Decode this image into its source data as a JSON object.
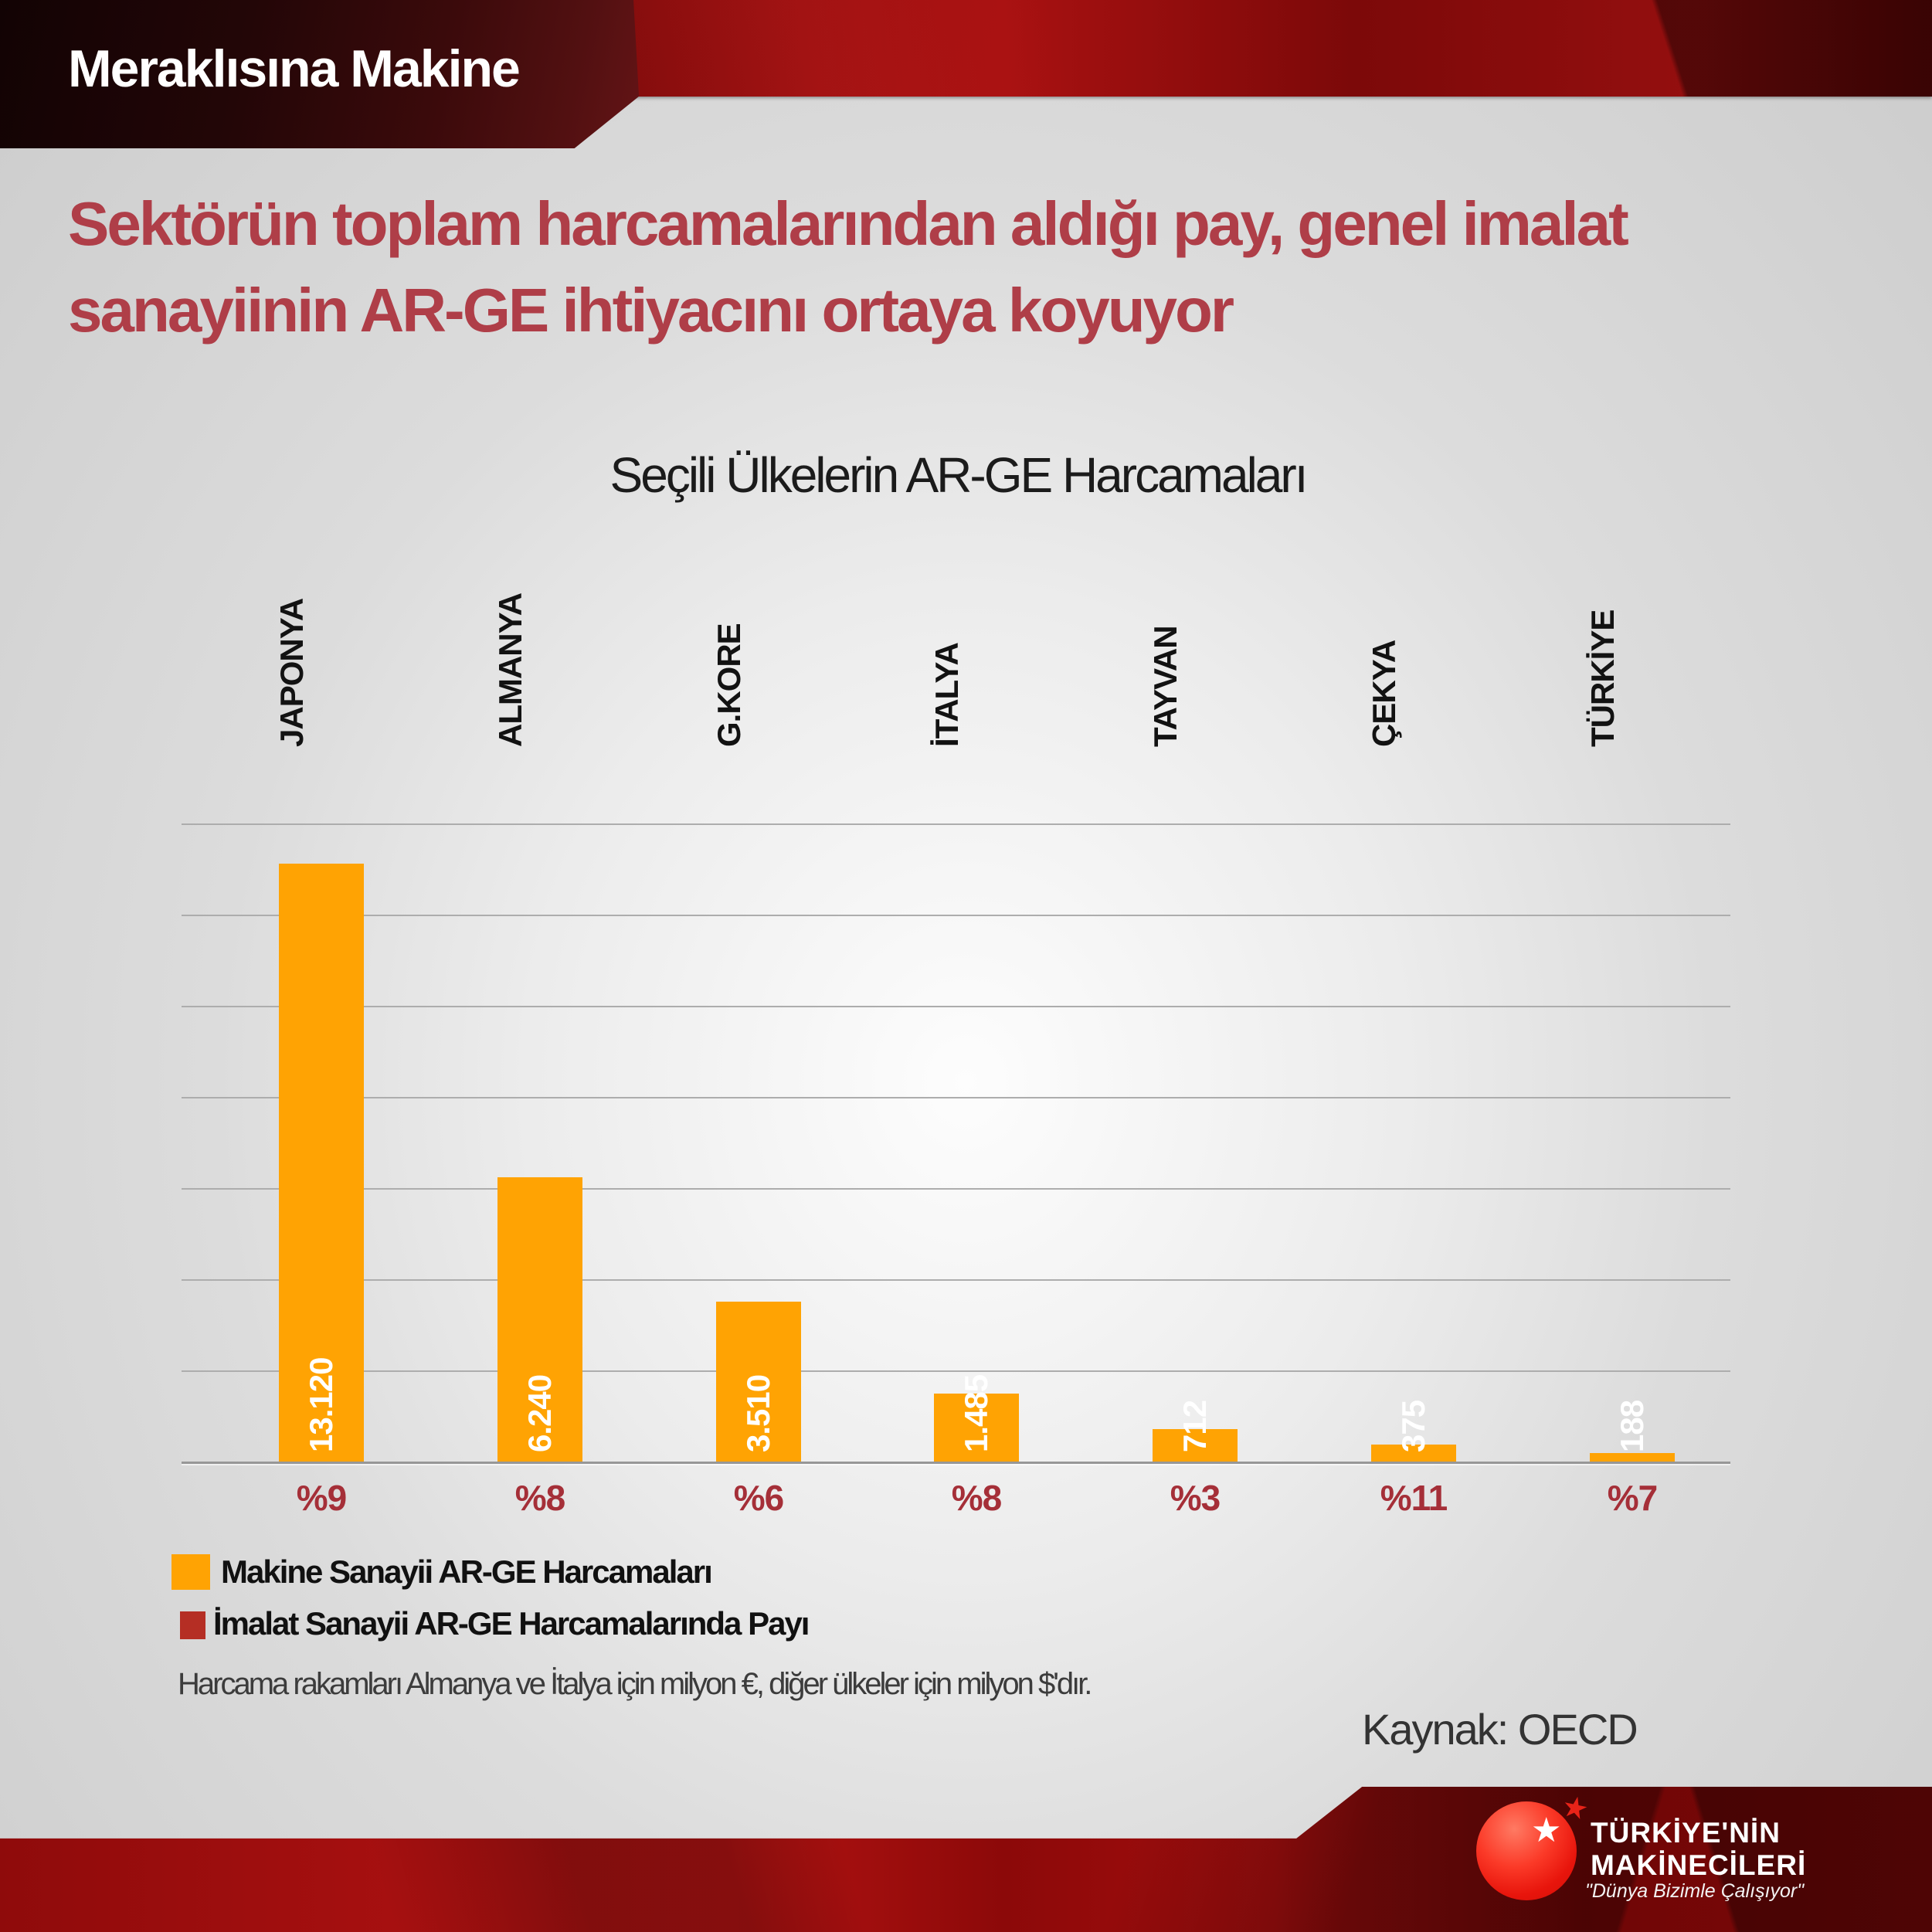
{
  "banner": {
    "title": "Meraklısına Makine"
  },
  "headline": {
    "line1": "Sektörün toplam harcamalarından aldığı pay, genel imalat",
    "line2": "sanayiinin AR-GE ihtiyacını ortaya koyuyor"
  },
  "chart": {
    "chart_data": {
      "type": "bar",
      "title": "Seçili Ülkelerin AR-GE Harcamaları",
      "categories": [
        "JAPONYA",
        "ALMANYA",
        "G.KORE",
        "İTALYA",
        "TAYVAN",
        "ÇEKYA",
        "TÜRKİYE"
      ],
      "series": [
        {
          "name": "Makine Sanayii AR-GE Harcamaları",
          "values": [
            13120,
            6240,
            3510,
            1485,
            712,
            375,
            188
          ],
          "labels": [
            "13.120",
            "6.240",
            "3.510",
            "1.485",
            "712",
            "375",
            "188"
          ],
          "color": "#FFA303"
        },
        {
          "name": "İmalat Sanayii AR-GE Harcamalarında Payı",
          "values": [
            9,
            8,
            6,
            8,
            3,
            11,
            7
          ],
          "labels": [
            "%9",
            "%8",
            "%6",
            "%8",
            "%3",
            "%11",
            "%7"
          ],
          "color": "#B52E24"
        }
      ],
      "xlabel": "",
      "ylabel": "",
      "ylim": [
        0,
        14000
      ],
      "grid": true,
      "gridline_interval": 2000,
      "legend_position": "bottom-left",
      "value_label_orientation": "rotated-90",
      "category_label_orientation": "rotated-90"
    }
  },
  "footnote": {
    "text": "Harcama rakamları Almanya ve İtalya için milyon €, diğer ülkeler için milyon $'dır."
  },
  "source": {
    "text": "Kaynak: OECD"
  },
  "logo": {
    "line1": "TÜRKİYE'NİN",
    "line2": "MAKİNECİLERİ",
    "slogan": "\"Dünya Bizimle Çalışıyor\"",
    "star_icon": "star",
    "badge_star_icon": "star"
  },
  "colors": {
    "bar-orange": "#FFA303",
    "legend-red": "#B52E24",
    "percent-red": "#A52F38",
    "headline-red": "#AF3E48",
    "title-black": "#1B1B1B",
    "banner-red": "#9C0C0C",
    "logo-red": "#E8150C"
  }
}
